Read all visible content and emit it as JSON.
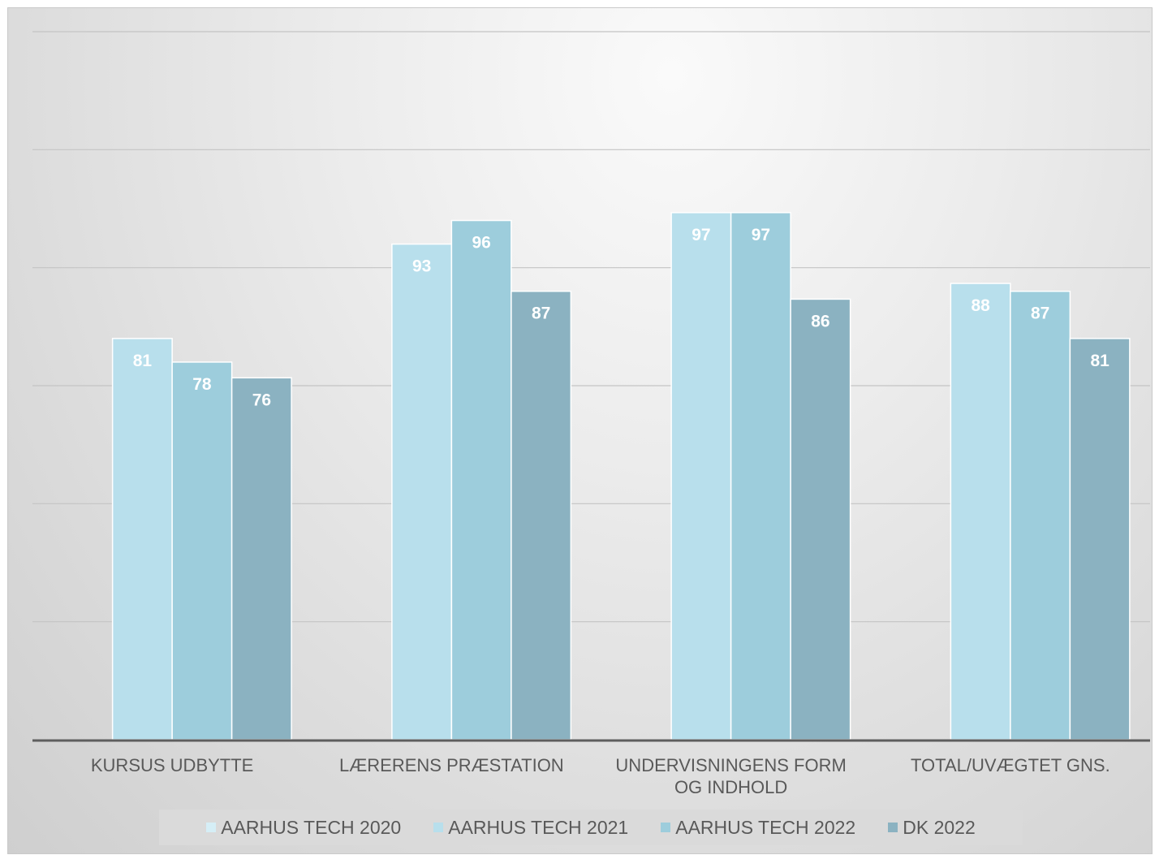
{
  "chart_data": {
    "type": "bar",
    "categories": [
      "KURSUS UDBYTTE",
      "LÆRERENS PRÆSTATION",
      "UNDERVISNINGENS FORM OG INDHOLD",
      "TOTAL/UVÆGTET GNS."
    ],
    "category_lines": [
      [
        "KURSUS UDBYTTE"
      ],
      [
        "LÆRERENS PRÆSTATION"
      ],
      [
        "UNDERVISNINGENS FORM",
        "OG INDHOLD"
      ],
      [
        "TOTAL/UVÆGTET GNS."
      ]
    ],
    "series": [
      {
        "name": "AARHUS TECH 2020",
        "values": [
          null,
          null,
          null,
          null
        ],
        "color": "#d5eef6"
      },
      {
        "name": "AARHUS TECH 2021",
        "values": [
          81,
          93,
          97,
          88
        ],
        "color": "#b8dfec"
      },
      {
        "name": "AARHUS TECH 2022",
        "values": [
          78,
          96,
          97,
          87
        ],
        "color": "#9dcddc"
      },
      {
        "name": "DK 2022",
        "values": [
          76,
          87,
          86,
          81
        ],
        "color": "#8bb2c1"
      }
    ],
    "ylim": [
      30,
      120
    ],
    "gridlines": true,
    "legend_position": "bottom",
    "data_labels": true
  }
}
